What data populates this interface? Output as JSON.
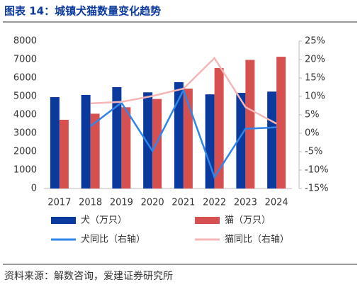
{
  "chart_data": {
    "type": "combo",
    "title": "图表 14：城镇犬猫数量变化趋势",
    "source": "资料来源：解数咨询，爱建证券研究所",
    "categories": [
      "2017",
      "2018",
      "2019",
      "2020",
      "2021",
      "2022",
      "2023",
      "2024"
    ],
    "ylim": [
      0,
      8000
    ],
    "yticks": [
      0,
      1000,
      2000,
      3000,
      4000,
      5000,
      6000,
      7000,
      8000
    ],
    "y2lim": [
      -15,
      25
    ],
    "y2ticks": [
      {
        "value": -15,
        "label": "-15%"
      },
      {
        "value": -10,
        "label": "-10%"
      },
      {
        "value": -5,
        "label": "-5%"
      },
      {
        "value": 0,
        "label": "0%"
      },
      {
        "value": 5,
        "label": "5%"
      },
      {
        "value": 10,
        "label": "10%"
      },
      {
        "value": 15,
        "label": "15%"
      },
      {
        "value": 20,
        "label": "20%"
      },
      {
        "value": 25,
        "label": "25%"
      }
    ],
    "grid": false,
    "series": [
      {
        "name": "犬（万只）",
        "mark": "bar",
        "color": "#0b3a9e",
        "values": [
          4960,
          5080,
          5500,
          5220,
          5770,
          5110,
          5190,
          5260
        ]
      },
      {
        "name": "猫（万只）",
        "mark": "bar",
        "color": "#d65050",
        "values": [
          3730,
          4060,
          4410,
          4860,
          5420,
          6540,
          6980,
          7150
        ]
      },
      {
        "name": "犬同比（右轴）",
        "mark": "line",
        "axis": "y2",
        "color": "#2f86e8",
        "values": [
          null,
          1.9,
          8.3,
          -4.8,
          11.7,
          -11.9,
          1.2,
          1.6
        ]
      },
      {
        "name": "猫同比（右轴）",
        "mark": "line",
        "axis": "y2",
        "color": "#f4b6b6",
        "values": [
          null,
          8.1,
          8.5,
          10.1,
          12.1,
          20.4,
          7.1,
          2.6
        ]
      }
    ]
  }
}
